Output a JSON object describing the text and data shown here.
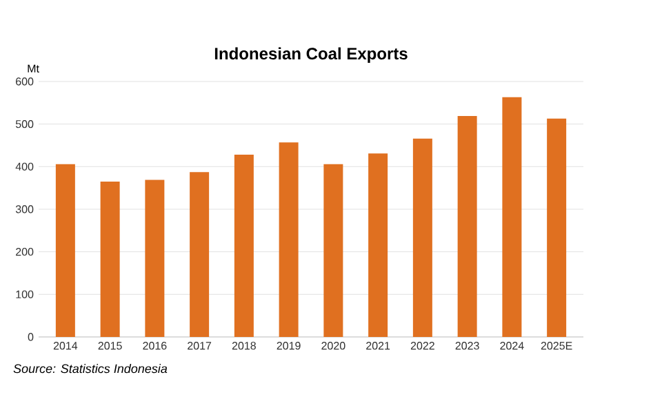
{
  "chart_data": {
    "type": "bar",
    "title": "Indonesian Coal Exports",
    "ylabel": "Mt",
    "categories": [
      "2014",
      "2015",
      "2016",
      "2017",
      "2018",
      "2019",
      "2020",
      "2021",
      "2022",
      "2023",
      "2024",
      "2025E"
    ],
    "values": [
      406,
      365,
      369,
      387,
      428,
      457,
      406,
      431,
      466,
      519,
      563,
      513
    ],
    "color": "#e07020",
    "ylim": [
      0,
      600
    ],
    "yticks": [
      0,
      100,
      200,
      300,
      400,
      500,
      600
    ],
    "grid": "y",
    "annotations": [
      "Source: Statistics Indonesia"
    ]
  }
}
